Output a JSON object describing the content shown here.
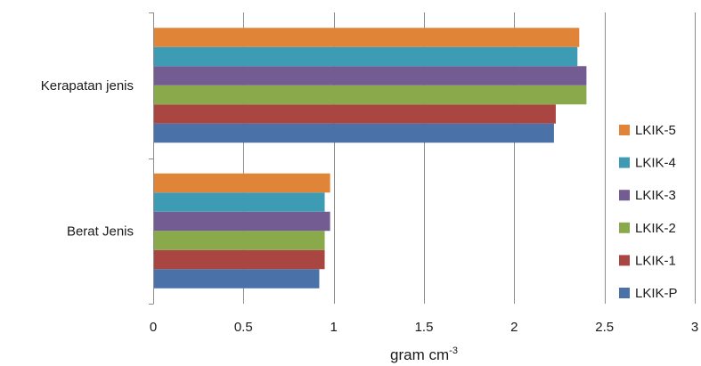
{
  "chart_data": {
    "type": "bar",
    "orientation": "horizontal",
    "categories": [
      "Berat Jenis",
      "Kerapatan jenis"
    ],
    "series": [
      {
        "name": "LKIK-P",
        "color": "#4a72a8",
        "values": [
          0.92,
          2.22
        ]
      },
      {
        "name": "LKIK-1",
        "color": "#a94641",
        "values": [
          0.95,
          2.23
        ]
      },
      {
        "name": "LKIK-2",
        "color": "#8aa94a",
        "values": [
          0.95,
          2.4
        ]
      },
      {
        "name": "LKIK-3",
        "color": "#725c92",
        "values": [
          0.98,
          2.4
        ]
      },
      {
        "name": "LKIK-4",
        "color": "#3e9bb4",
        "values": [
          0.95,
          2.35
        ]
      },
      {
        "name": "LKIK-5",
        "color": "#e08537",
        "values": [
          0.98,
          2.36
        ]
      }
    ],
    "xlim": [
      0,
      3
    ],
    "xticks": [
      "0",
      "0.5",
      "1",
      "1.5",
      "2",
      "2.5",
      "3"
    ],
    "xlabel": "gram cm",
    "xlabel_superscript": "-3",
    "ylabel": "",
    "title": "",
    "grid": "vertical",
    "legend": "right"
  }
}
